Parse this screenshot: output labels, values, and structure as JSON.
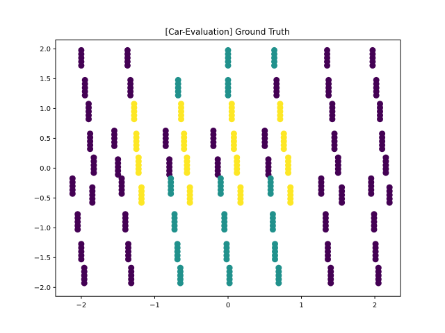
{
  "chart_data": {
    "type": "scatter",
    "title": "[Car-Evaluation] Ground Truth",
    "xlabel": "",
    "ylabel": "",
    "xlim": [
      -2.35,
      2.35
    ],
    "ylim": [
      -2.15,
      2.15
    ],
    "x_ticks": [
      -2,
      -1,
      0,
      1,
      2
    ],
    "y_ticks": [
      -2.0,
      -1.5,
      -1.0,
      -0.5,
      0.0,
      0.5,
      1.0,
      1.5,
      2.0
    ],
    "grid": false,
    "legend": "none",
    "class_colors": {
      "0": "#440154",
      "1": "#21918c",
      "2": "#fde725"
    },
    "clusters": [
      {
        "x": -2.0,
        "y": 1.85,
        "class": 0
      },
      {
        "x": -1.37,
        "y": 1.85,
        "class": 0
      },
      {
        "x": -0.0,
        "y": 1.85,
        "class": 1
      },
      {
        "x": 0.63,
        "y": 1.85,
        "class": 1
      },
      {
        "x": 1.35,
        "y": 1.85,
        "class": 0
      },
      {
        "x": 1.97,
        "y": 1.85,
        "class": 0
      },
      {
        "x": -1.95,
        "y": 1.35,
        "class": 0
      },
      {
        "x": -1.33,
        "y": 1.35,
        "class": 0
      },
      {
        "x": -0.68,
        "y": 1.35,
        "class": 1
      },
      {
        "x": -0.0,
        "y": 1.35,
        "class": 1
      },
      {
        "x": 0.66,
        "y": 1.35,
        "class": 0
      },
      {
        "x": 1.37,
        "y": 1.35,
        "class": 0
      },
      {
        "x": 2.02,
        "y": 1.35,
        "class": 0
      },
      {
        "x": -1.9,
        "y": 0.95,
        "class": 0
      },
      {
        "x": -1.28,
        "y": 0.95,
        "class": 2
      },
      {
        "x": -0.64,
        "y": 0.95,
        "class": 2
      },
      {
        "x": 0.05,
        "y": 0.95,
        "class": 2
      },
      {
        "x": 0.71,
        "y": 0.95,
        "class": 2
      },
      {
        "x": 1.42,
        "y": 0.95,
        "class": 0
      },
      {
        "x": 2.07,
        "y": 0.95,
        "class": 0
      },
      {
        "x": -1.88,
        "y": 0.45,
        "class": 0
      },
      {
        "x": -1.55,
        "y": 0.5,
        "class": 0
      },
      {
        "x": -1.25,
        "y": 0.45,
        "class": 2
      },
      {
        "x": -0.85,
        "y": 0.5,
        "class": 0
      },
      {
        "x": -0.6,
        "y": 0.45,
        "class": 2
      },
      {
        "x": -0.2,
        "y": 0.5,
        "class": 0
      },
      {
        "x": 0.08,
        "y": 0.45,
        "class": 2
      },
      {
        "x": 0.5,
        "y": 0.5,
        "class": 0
      },
      {
        "x": 0.76,
        "y": 0.45,
        "class": 2
      },
      {
        "x": 1.45,
        "y": 0.45,
        "class": 0
      },
      {
        "x": 2.1,
        "y": 0.45,
        "class": 0
      },
      {
        "x": -1.83,
        "y": 0.05,
        "class": 0
      },
      {
        "x": -1.5,
        "y": 0.02,
        "class": 0
      },
      {
        "x": -1.22,
        "y": 0.05,
        "class": 2
      },
      {
        "x": -0.8,
        "y": 0.02,
        "class": 0
      },
      {
        "x": -0.56,
        "y": 0.05,
        "class": 2
      },
      {
        "x": -0.14,
        "y": 0.02,
        "class": 0
      },
      {
        "x": 0.12,
        "y": 0.05,
        "class": 2
      },
      {
        "x": 0.55,
        "y": 0.02,
        "class": 0
      },
      {
        "x": 0.82,
        "y": 0.05,
        "class": 2
      },
      {
        "x": 1.5,
        "y": 0.05,
        "class": 0
      },
      {
        "x": 2.15,
        "y": 0.05,
        "class": 0
      },
      {
        "x": -2.12,
        "y": -0.3,
        "class": 0
      },
      {
        "x": -1.85,
        "y": -0.45,
        "class": 0
      },
      {
        "x": -1.45,
        "y": -0.3,
        "class": 0
      },
      {
        "x": -1.18,
        "y": -0.45,
        "class": 2
      },
      {
        "x": -0.78,
        "y": -0.3,
        "class": 1
      },
      {
        "x": -0.52,
        "y": -0.45,
        "class": 2
      },
      {
        "x": -0.1,
        "y": -0.3,
        "class": 1
      },
      {
        "x": 0.17,
        "y": -0.45,
        "class": 2
      },
      {
        "x": 0.58,
        "y": -0.3,
        "class": 1
      },
      {
        "x": 0.85,
        "y": -0.45,
        "class": 2
      },
      {
        "x": 1.27,
        "y": -0.3,
        "class": 0
      },
      {
        "x": 1.55,
        "y": -0.45,
        "class": 0
      },
      {
        "x": 1.95,
        "y": -0.3,
        "class": 0
      },
      {
        "x": 2.2,
        "y": -0.45,
        "class": 0
      },
      {
        "x": -2.05,
        "y": -0.9,
        "class": 0
      },
      {
        "x": -1.4,
        "y": -0.9,
        "class": 0
      },
      {
        "x": -0.73,
        "y": -0.9,
        "class": 1
      },
      {
        "x": -0.05,
        "y": -0.9,
        "class": 1
      },
      {
        "x": 0.61,
        "y": -0.9,
        "class": 1
      },
      {
        "x": 1.33,
        "y": -0.9,
        "class": 0
      },
      {
        "x": 1.99,
        "y": -0.9,
        "class": 0
      },
      {
        "x": -2.0,
        "y": -1.4,
        "class": 0
      },
      {
        "x": -1.36,
        "y": -1.4,
        "class": 0
      },
      {
        "x": -0.69,
        "y": -1.4,
        "class": 1
      },
      {
        "x": -0.02,
        "y": -1.4,
        "class": 1
      },
      {
        "x": 0.64,
        "y": -1.4,
        "class": 1
      },
      {
        "x": 1.36,
        "y": -1.4,
        "class": 0
      },
      {
        "x": 2.01,
        "y": -1.4,
        "class": 0
      },
      {
        "x": -1.96,
        "y": -1.8,
        "class": 0
      },
      {
        "x": -1.32,
        "y": -1.8,
        "class": 0
      },
      {
        "x": -0.65,
        "y": -1.8,
        "class": 1
      },
      {
        "x": 0.02,
        "y": -1.8,
        "class": 1
      },
      {
        "x": 0.69,
        "y": -1.8,
        "class": 1
      },
      {
        "x": 1.4,
        "y": -1.8,
        "class": 0
      },
      {
        "x": 2.05,
        "y": -1.8,
        "class": 0
      }
    ]
  }
}
